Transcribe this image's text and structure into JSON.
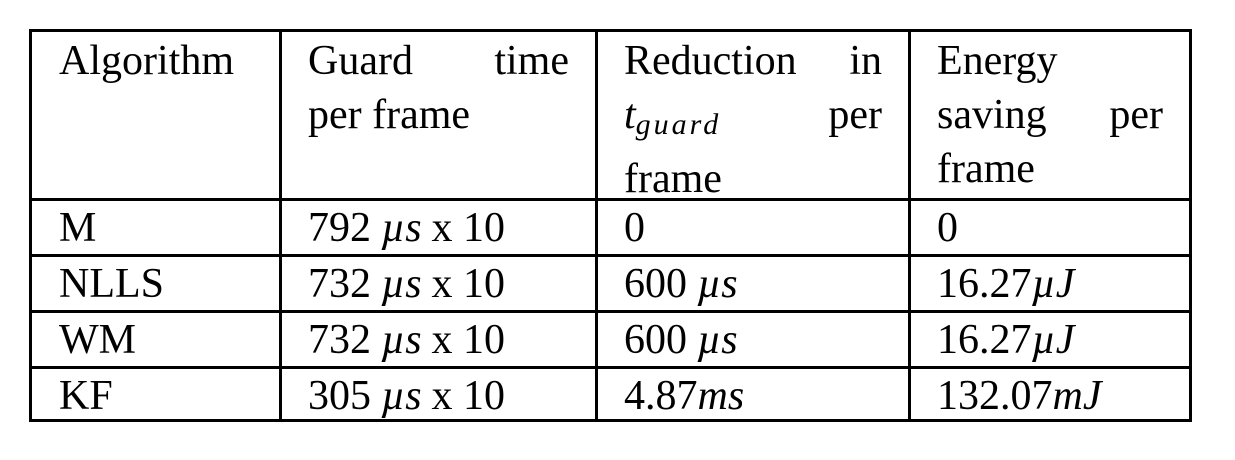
{
  "table": {
    "headers": [
      {
        "lines": [
          [
            "Algorithm"
          ]
        ]
      },
      {
        "lines": [
          [
            "Guard",
            "time"
          ],
          [
            "per frame"
          ]
        ]
      },
      {
        "lines": [
          [
            "Reduction",
            "in"
          ],
          [
            "t_guard",
            "per"
          ],
          [
            "frame"
          ]
        ]
      },
      {
        "lines": [
          [
            "Energy"
          ],
          [
            "saving",
            "per"
          ],
          [
            "frame"
          ]
        ]
      }
    ],
    "rows": [
      {
        "algorithm": "M",
        "guard_value": "792",
        "guard_unit": "µs",
        "guard_mult": "x 10",
        "reduction_value": "0",
        "reduction_unit": "",
        "energy_value": "0",
        "energy_unit": ""
      },
      {
        "algorithm": "NLLS",
        "guard_value": "732",
        "guard_unit": "µs",
        "guard_mult": "x 10",
        "reduction_value": "600",
        "reduction_unit": "µs",
        "energy_value": "16.27",
        "energy_unit": "µJ"
      },
      {
        "algorithm": "WM",
        "guard_value": "732",
        "guard_unit": "µs",
        "guard_mult": "x 10",
        "reduction_value": "600",
        "reduction_unit": "µs",
        "energy_value": "16.27",
        "energy_unit": "µJ"
      },
      {
        "algorithm": "KF",
        "guard_value": "305",
        "guard_unit": "µs",
        "guard_mult": "x 10",
        "reduction_value": "4.87",
        "reduction_unit": "ms",
        "energy_value": "132.07",
        "energy_unit": "mJ"
      }
    ]
  }
}
